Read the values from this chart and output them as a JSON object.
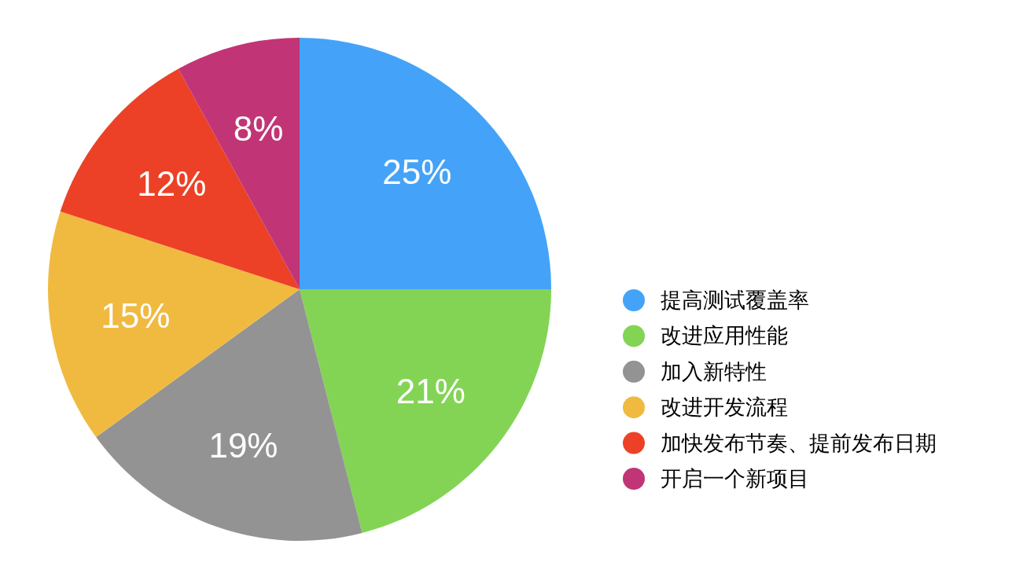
{
  "chart_data": {
    "type": "pie",
    "categories": [
      "提高测试覆盖率",
      "改进应用性能",
      "加入新特性",
      "改进开发流程",
      "加快发布节奏、提前发布日期",
      "开启一个新项目"
    ],
    "values": [
      25,
      21,
      19,
      15,
      12,
      8
    ],
    "colors": [
      "#44a3f8",
      "#83d454",
      "#939393",
      "#f0ba41",
      "#ec4126",
      "#c13576"
    ],
    "value_labels": [
      "25%",
      "21%",
      "19%",
      "15%",
      "12%",
      "8%"
    ],
    "legend": "right"
  }
}
